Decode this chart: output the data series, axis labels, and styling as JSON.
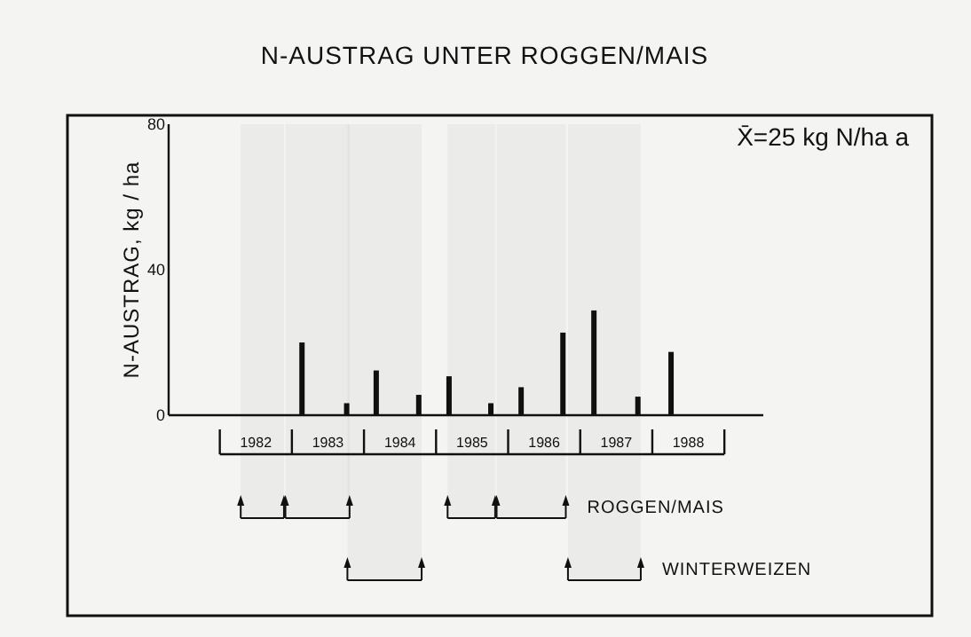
{
  "chart_data": {
    "type": "bar",
    "title": "N-AUSTRAG UNTER ROGGEN/MAIS",
    "ylabel": "N-AUSTRAG, kg / ha",
    "annotations": [
      "X̄=25 kg N/ha a"
    ],
    "x": [
      1983.14,
      1983.76,
      1984.17,
      1984.76,
      1985.18,
      1985.76,
      1986.18,
      1986.76,
      1987.19,
      1987.8,
      1988.26
    ],
    "values": [
      20,
      3.3,
      12.3,
      5.6,
      10.7,
      3.3,
      7.7,
      22.7,
      28.8,
      5.1,
      17.4
    ],
    "color": "#111111",
    "xlim": [
      1981.29,
      1989.54
    ],
    "xticks": [
      {
        "value": 1982.5,
        "label": "1982"
      },
      {
        "value": 1983.5,
        "label": "1983"
      },
      {
        "value": 1984.5,
        "label": "1984"
      },
      {
        "value": 1985.5,
        "label": "1985"
      },
      {
        "value": 1986.5,
        "label": "1986"
      },
      {
        "value": 1987.5,
        "label": "1987"
      },
      {
        "value": 1988.5,
        "label": "1988"
      }
    ],
    "ylim": [
      0,
      80
    ],
    "yticks": [
      0,
      40,
      80
    ],
    "bands": [
      {
        "axis": "x",
        "from": 1982.29,
        "to": 1982.89
      },
      {
        "axis": "x",
        "from": 1982.91,
        "to": 1983.8
      },
      {
        "axis": "x",
        "from": 1985.16,
        "to": 1985.82
      },
      {
        "axis": "x",
        "from": 1985.84,
        "to": 1986.8,
        "label": "ROGGEN/MAIS"
      },
      {
        "axis": "x",
        "from": 1983.77,
        "to": 1984.8
      },
      {
        "axis": "x",
        "from": 1986.83,
        "to": 1987.84,
        "label": "WINTERWEIZEN"
      }
    ]
  }
}
